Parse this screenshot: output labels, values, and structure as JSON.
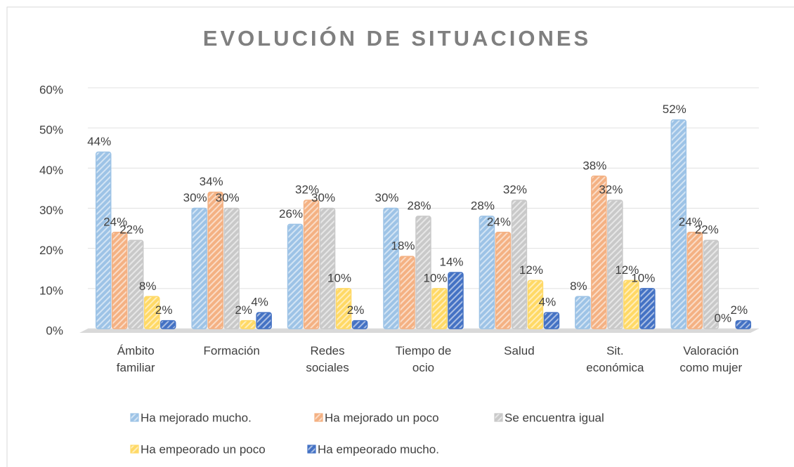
{
  "chart_data": {
    "type": "bar",
    "title": "EVOLUCIÓN DE SITUACIONES",
    "categories": [
      "Ámbito familiar",
      "Formación",
      "Redes sociales",
      "Tiempo de ocio",
      "Salud",
      "Sit. económica",
      "Valoración como mujer"
    ],
    "series": [
      {
        "name": "Ha mejorado mucho.",
        "color": "#9dc3e6",
        "values": [
          44,
          30,
          26,
          30,
          28,
          8,
          52
        ],
        "value_labels": [
          "44%",
          "30%",
          "26%",
          "30%",
          "28%",
          "8%",
          "52%"
        ]
      },
      {
        "name": "Ha mejorado un poco",
        "color": "#f4b183",
        "values": [
          24,
          34,
          32,
          18,
          24,
          38,
          24
        ],
        "value_labels": [
          "24%",
          "34%",
          "32%",
          "18%",
          "24%",
          "38%",
          "24%"
        ]
      },
      {
        "name": "Se encuentra igual",
        "color": "#c9c9c9",
        "values": [
          22,
          30,
          30,
          28,
          32,
          32,
          22
        ],
        "value_labels": [
          "22%",
          "30%",
          "30%",
          "28%",
          "32%",
          "32%",
          "22%"
        ]
      },
      {
        "name": "Ha empeorado un poco",
        "color": "#ffd966",
        "values": [
          8,
          2,
          10,
          10,
          12,
          12,
          0
        ],
        "value_labels": [
          "8%",
          "2%",
          "10%",
          "10%",
          "12%",
          "12%",
          "0%"
        ]
      },
      {
        "name": "Ha empeorado mucho.",
        "color": "#4472c4",
        "values": [
          2,
          4,
          2,
          14,
          4,
          10,
          2
        ],
        "value_labels": [
          "2%",
          "4%",
          "2%",
          "14%",
          "4%",
          "10%",
          "2%"
        ]
      }
    ],
    "ylim": [
      0,
      60
    ],
    "yticks": [
      {
        "value": 0,
        "label": "0%"
      },
      {
        "value": 10,
        "label": "10%"
      },
      {
        "value": 20,
        "label": "20%"
      },
      {
        "value": 30,
        "label": "30%"
      },
      {
        "value": 40,
        "label": "40%"
      },
      {
        "value": 50,
        "label": "50%"
      },
      {
        "value": 60,
        "label": "60%"
      }
    ],
    "grid": true
  }
}
